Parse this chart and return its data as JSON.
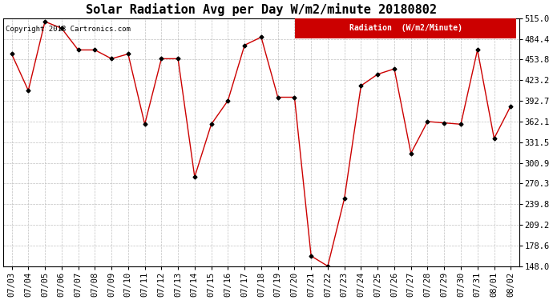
{
  "title": "Solar Radiation Avg per Day W/m2/minute 20180802",
  "copyright_text": "Copyright 2018 Cartronics.com",
  "legend_label": "Radiation  (W/m2/Minute)",
  "dates": [
    "07/03",
    "07/04",
    "07/05",
    "07/06",
    "07/07",
    "07/08",
    "07/09",
    "07/10",
    "07/11",
    "07/12",
    "07/13",
    "07/14",
    "07/15",
    "07/16",
    "07/17",
    "07/18",
    "07/19",
    "07/20",
    "07/21",
    "07/22",
    "07/23",
    "07/24",
    "07/25",
    "07/26",
    "07/27",
    "07/28",
    "07/29",
    "07/30",
    "07/31",
    "08/01",
    "08/02"
  ],
  "values": [
    462,
    408,
    510,
    500,
    468,
    468,
    455,
    462,
    358,
    455,
    455,
    280,
    358,
    393,
    475,
    487,
    398,
    398,
    163,
    148,
    248,
    415,
    432,
    440,
    315,
    362,
    360,
    358,
    468,
    337,
    385
  ],
  "line_color": "#cc0000",
  "marker_color": "#000000",
  "background_color": "#ffffff",
  "grid_color": "#c0c0c0",
  "ylim": [
    148.0,
    515.0
  ],
  "yticks": [
    148.0,
    178.6,
    209.2,
    239.8,
    270.3,
    300.9,
    331.5,
    362.1,
    392.7,
    423.2,
    453.8,
    484.4,
    515.0
  ],
  "title_fontsize": 11,
  "tick_fontsize": 7.5,
  "legend_bg": "#cc0000",
  "legend_text_color": "#ffffff"
}
